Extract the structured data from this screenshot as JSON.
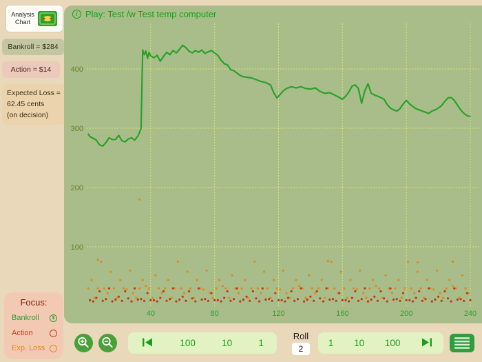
{
  "app": {
    "title_line1": "Analysis",
    "title_line2": "Chart"
  },
  "sidebar": {
    "bankroll": "Bankroll = $284",
    "action": "Action = $14",
    "expected_loss_line1": "Expected Loss =",
    "expected_loss_line2": "62.45 cents",
    "expected_loss_line3": "(on decision)"
  },
  "chart_header": {
    "info_glyph": "i",
    "title": "Play: Test /w Test temp computer"
  },
  "focus": {
    "label": "Focus:",
    "items": [
      {
        "label": "Bankroll",
        "color": "#2c9e2c",
        "icon_glyph": "$",
        "selected": true
      },
      {
        "label": "Action",
        "color": "#cf3a1a",
        "icon_glyph": "",
        "selected": false
      },
      {
        "label": "Exp. Loss",
        "color": "#e08a1a",
        "icon_glyph": "",
        "selected": false
      }
    ]
  },
  "toolbar": {
    "back_buttons": [
      "100",
      "10",
      "1"
    ],
    "forward_buttons": [
      "1",
      "10",
      "100"
    ],
    "roll_label": "Roll",
    "roll_value": "2"
  },
  "colors": {
    "page_bg": "#ead8ba",
    "chart_bg": "#a8bd8a",
    "grid": "#d9e66e",
    "bankroll_line": "#28a228",
    "action_dots": "#e0891c",
    "exploss_dots": "#bf3a16",
    "title_green": "#12a312",
    "button_green": "#17a017"
  },
  "chart_data": {
    "type": "line+scatter",
    "title": "Play: Test /w Test temp computer",
    "xlabel": "",
    "ylabel": "",
    "xlim": [
      0,
      240
    ],
    "ylim": [
      0,
      480
    ],
    "x_ticks": [
      40,
      80,
      120,
      160,
      200,
      240
    ],
    "y_ticks": [
      100,
      200,
      300,
      400
    ],
    "grid": true,
    "series": [
      {
        "name": "Action",
        "type": "scatter",
        "color": "#e0891c",
        "start": 1,
        "step": 2,
        "values": [
          30,
          44,
          14,
          30,
          75,
          30,
          22,
          58,
          30,
          14,
          44,
          30,
          28,
          60,
          22,
          14,
          30,
          44,
          34,
          30,
          14,
          52,
          30,
          22,
          30,
          44,
          14,
          30,
          75,
          30,
          22,
          58,
          30,
          14,
          44,
          30,
          28,
          60,
          22,
          14,
          30,
          44,
          34,
          30,
          14,
          52,
          30,
          22,
          30,
          44,
          14,
          30,
          75,
          30,
          22,
          58,
          30,
          14,
          44,
          30,
          28,
          60,
          22,
          14,
          30,
          44,
          34,
          30,
          14,
          52,
          30,
          22,
          30,
          44,
          14,
          30,
          75,
          30,
          22,
          58,
          30,
          14,
          44,
          30,
          28,
          60,
          22,
          14,
          30,
          44,
          34,
          30,
          14,
          52,
          30,
          22,
          30,
          44,
          14,
          30,
          75,
          30,
          22,
          58,
          30,
          14,
          44,
          30,
          28,
          60,
          22,
          14,
          30,
          44,
          34,
          30,
          14,
          52,
          30,
          22
        ],
        "extra_points": [
          [
            33,
            180
          ],
          [
            7,
            78
          ],
          [
            151,
            76
          ],
          [
            207,
            74
          ],
          [
            229,
            75
          ]
        ]
      },
      {
        "name": "Exp. Loss",
        "type": "scatter",
        "color": "#bf3a16",
        "start": 2,
        "step": 2,
        "values": [
          10,
          8,
          14,
          25,
          9,
          12,
          30,
          8,
          11,
          16,
          9,
          25,
          13,
          8,
          30,
          11,
          12,
          9,
          22,
          10,
          10,
          8,
          14,
          25,
          9,
          12,
          30,
          8,
          11,
          16,
          9,
          25,
          13,
          8,
          30,
          11,
          12,
          9,
          22,
          10,
          10,
          8,
          14,
          25,
          9,
          12,
          30,
          8,
          11,
          16,
          9,
          25,
          13,
          8,
          30,
          11,
          12,
          9,
          22,
          10,
          10,
          8,
          14,
          25,
          9,
          12,
          30,
          8,
          11,
          16,
          9,
          25,
          13,
          8,
          30,
          11,
          12,
          9,
          22,
          10,
          10,
          8,
          14,
          25,
          9,
          12,
          30,
          8,
          11,
          16,
          9,
          25,
          13,
          8,
          30,
          11,
          12,
          9,
          22,
          10,
          10,
          8,
          14,
          25,
          9,
          12,
          30,
          8,
          11,
          16,
          9,
          25,
          13,
          8,
          30,
          11,
          12,
          9,
          22,
          10
        ],
        "extra_points": []
      },
      {
        "name": "Bankroll",
        "type": "line",
        "color": "#28a228",
        "points": [
          [
            1,
            290
          ],
          [
            2,
            286
          ],
          [
            4,
            283
          ],
          [
            6,
            280
          ],
          [
            8,
            272
          ],
          [
            10,
            270
          ],
          [
            12,
            276
          ],
          [
            14,
            284
          ],
          [
            16,
            281
          ],
          [
            18,
            281
          ],
          [
            20,
            288
          ],
          [
            22,
            279
          ],
          [
            24,
            277
          ],
          [
            26,
            282
          ],
          [
            28,
            284
          ],
          [
            30,
            280
          ],
          [
            32,
            287
          ],
          [
            33,
            293
          ],
          [
            34,
            300
          ],
          [
            35,
            432
          ],
          [
            36,
            424
          ],
          [
            37,
            430
          ],
          [
            38,
            418
          ],
          [
            39,
            428
          ],
          [
            40,
            422
          ],
          [
            42,
            419
          ],
          [
            44,
            423
          ],
          [
            46,
            413
          ],
          [
            48,
            421
          ],
          [
            50,
            428
          ],
          [
            52,
            424
          ],
          [
            54,
            431
          ],
          [
            56,
            427
          ],
          [
            58,
            433
          ],
          [
            60,
            440
          ],
          [
            62,
            436
          ],
          [
            64,
            430
          ],
          [
            66,
            427
          ],
          [
            68,
            431
          ],
          [
            70,
            428
          ],
          [
            72,
            432
          ],
          [
            74,
            426
          ],
          [
            76,
            429
          ],
          [
            78,
            431
          ],
          [
            80,
            427
          ],
          [
            82,
            423
          ],
          [
            84,
            415
          ],
          [
            86,
            409
          ],
          [
            88,
            407
          ],
          [
            90,
            399
          ],
          [
            92,
            397
          ],
          [
            94,
            393
          ],
          [
            96,
            389
          ],
          [
            98,
            387
          ],
          [
            100,
            386
          ],
          [
            103,
            385
          ],
          [
            106,
            382
          ],
          [
            109,
            379
          ],
          [
            112,
            377
          ],
          [
            115,
            373
          ],
          [
            117,
            360
          ],
          [
            119,
            351
          ],
          [
            121,
            357
          ],
          [
            123,
            363
          ],
          [
            125,
            367
          ],
          [
            128,
            370
          ],
          [
            131,
            368
          ],
          [
            134,
            370
          ],
          [
            137,
            367
          ],
          [
            140,
            366
          ],
          [
            143,
            368
          ],
          [
            146,
            362
          ],
          [
            149,
            359
          ],
          [
            152,
            360
          ],
          [
            155,
            356
          ],
          [
            158,
            352
          ],
          [
            160,
            349
          ],
          [
            162,
            354
          ],
          [
            164,
            361
          ],
          [
            166,
            371
          ],
          [
            168,
            373
          ],
          [
            170,
            367
          ],
          [
            172,
            342
          ],
          [
            174,
            363
          ],
          [
            176,
            375
          ],
          [
            178,
            359
          ],
          [
            180,
            356
          ],
          [
            183,
            353
          ],
          [
            186,
            349
          ],
          [
            188,
            340
          ],
          [
            190,
            334
          ],
          [
            192,
            331
          ],
          [
            194,
            329
          ],
          [
            196,
            333
          ],
          [
            198,
            341
          ],
          [
            200,
            347
          ],
          [
            202,
            341
          ],
          [
            204,
            337
          ],
          [
            206,
            333
          ],
          [
            208,
            331
          ],
          [
            210,
            329
          ],
          [
            212,
            327
          ],
          [
            214,
            325
          ],
          [
            216,
            329
          ],
          [
            218,
            331
          ],
          [
            220,
            334
          ],
          [
            222,
            338
          ],
          [
            224,
            345
          ],
          [
            226,
            351
          ],
          [
            228,
            352
          ],
          [
            230,
            347
          ],
          [
            232,
            339
          ],
          [
            234,
            331
          ],
          [
            236,
            325
          ],
          [
            238,
            321
          ],
          [
            240,
            320
          ]
        ]
      }
    ]
  }
}
